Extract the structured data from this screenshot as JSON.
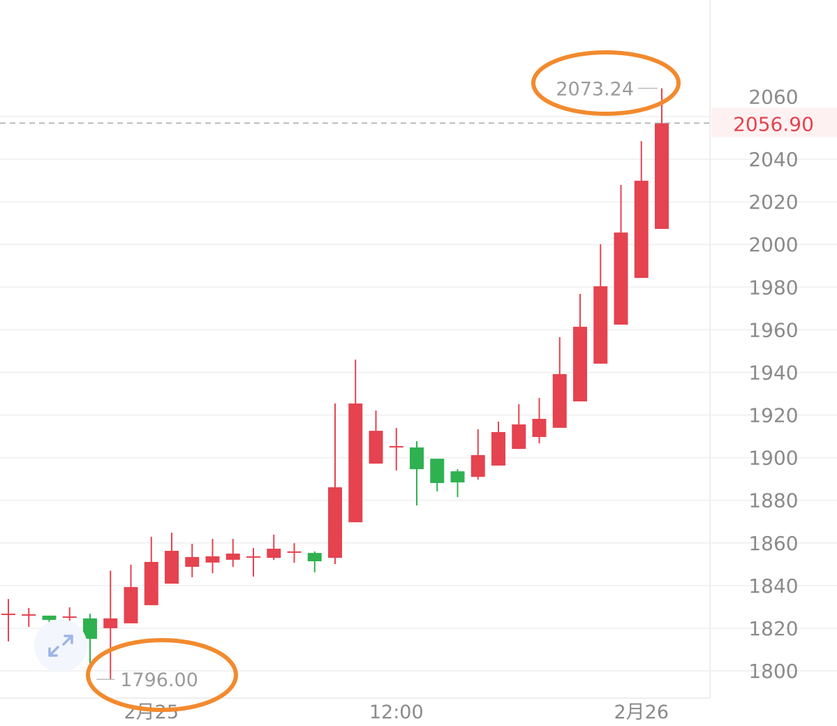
{
  "chart_data": {
    "type": "candlestick",
    "ylim": [
      1786,
      2083
    ],
    "y_ticks": [
      1800,
      1820,
      1840,
      1860,
      1880,
      1900,
      1920,
      1940,
      1960,
      1980,
      2000,
      2020,
      2040,
      2060
    ],
    "y_tick_labels": [
      "1800",
      "1820",
      "1840",
      "1860",
      "1880",
      "1900",
      "1920",
      "1940",
      "1960",
      "1980",
      "2000",
      "2020",
      "2040",
      "2060"
    ],
    "x_tick_labels": [
      {
        "label": "2月25",
        "candle": 7
      },
      {
        "label": "12:00",
        "candle": 19
      },
      {
        "label": "2月26",
        "candle": 31
      }
    ],
    "grid": true,
    "up_color": "#e4434f",
    "down_color": "#2fb150",
    "current_price": {
      "value": 2056.9,
      "label": "2056.90",
      "color": "#e4434f"
    },
    "max_marker": {
      "label": "2073.24",
      "value": 2073.24,
      "candle": 32
    },
    "min_marker": {
      "label": "1796.00",
      "value": 1796.0,
      "candle": 5
    },
    "annotation_color": "#f28a2e",
    "candles": [
      {
        "o": 1826.5,
        "h": 1833.7,
        "l": 1813.8,
        "c": 1826.5
      },
      {
        "o": 1826.2,
        "h": 1829.5,
        "l": 1820.6,
        "c": 1826.2
      },
      {
        "o": 1825.9,
        "h": 1825.9,
        "l": 1817.7,
        "c": 1823.9
      },
      {
        "o": 1825.2,
        "h": 1829.8,
        "l": 1821.0,
        "c": 1825.2
      },
      {
        "o": 1824.6,
        "h": 1826.8,
        "l": 1803.6,
        "c": 1815.0
      },
      {
        "o": 1820.0,
        "h": 1847.0,
        "l": 1796.0,
        "c": 1824.6
      },
      {
        "o": 1822.3,
        "h": 1849.8,
        "l": 1822.3,
        "c": 1839.3
      },
      {
        "o": 1830.8,
        "h": 1862.9,
        "l": 1830.8,
        "c": 1851.1
      },
      {
        "o": 1840.9,
        "h": 1864.8,
        "l": 1840.9,
        "c": 1856.3
      },
      {
        "o": 1848.8,
        "h": 1859.6,
        "l": 1843.9,
        "c": 1853.4
      },
      {
        "o": 1850.8,
        "h": 1861.9,
        "l": 1845.8,
        "c": 1853.7
      },
      {
        "o": 1852.1,
        "h": 1861.9,
        "l": 1848.8,
        "c": 1855.0
      },
      {
        "o": 1853.4,
        "h": 1857.6,
        "l": 1844.2,
        "c": 1853.4
      },
      {
        "o": 1853.0,
        "h": 1863.9,
        "l": 1852.0,
        "c": 1857.3
      },
      {
        "o": 1855.7,
        "h": 1859.9,
        "l": 1850.7,
        "c": 1855.7
      },
      {
        "o": 1855.3,
        "h": 1856.0,
        "l": 1846.2,
        "c": 1851.4
      },
      {
        "o": 1853.0,
        "h": 1925.4,
        "l": 1850.1,
        "c": 1886.1
      },
      {
        "o": 1869.7,
        "h": 1946.0,
        "l": 1869.7,
        "c": 1925.4
      },
      {
        "o": 1897.2,
        "h": 1922.1,
        "l": 1897.2,
        "c": 1912.6
      },
      {
        "o": 1905.1,
        "h": 1913.9,
        "l": 1894.0,
        "c": 1905.1
      },
      {
        "o": 1904.8,
        "h": 1907.7,
        "l": 1877.6,
        "c": 1894.6
      },
      {
        "o": 1899.5,
        "h": 1899.5,
        "l": 1884.2,
        "c": 1888.1
      },
      {
        "o": 1893.6,
        "h": 1894.6,
        "l": 1881.5,
        "c": 1888.4
      },
      {
        "o": 1891.0,
        "h": 1913.3,
        "l": 1889.7,
        "c": 1901.2
      },
      {
        "o": 1896.3,
        "h": 1916.9,
        "l": 1896.3,
        "c": 1912.0
      },
      {
        "o": 1904.1,
        "h": 1925.1,
        "l": 1904.1,
        "c": 1915.6
      },
      {
        "o": 1909.7,
        "h": 1928.0,
        "l": 1906.7,
        "c": 1918.2
      },
      {
        "o": 1914.0,
        "h": 1956.5,
        "l": 1914.0,
        "c": 1939.2
      },
      {
        "o": 1926.4,
        "h": 1976.8,
        "l": 1926.4,
        "c": 1961.4
      },
      {
        "o": 1944.1,
        "h": 2000.1,
        "l": 1944.1,
        "c": 1980.4
      },
      {
        "o": 1962.4,
        "h": 2027.9,
        "l": 1962.4,
        "c": 2005.6
      },
      {
        "o": 1984.3,
        "h": 2048.5,
        "l": 1984.3,
        "c": 2029.9
      },
      {
        "o": 2007.3,
        "h": 2073.24,
        "l": 2007.3,
        "c": 2056.9
      }
    ]
  },
  "icons": {
    "expand": "expand-arrows-icon"
  }
}
